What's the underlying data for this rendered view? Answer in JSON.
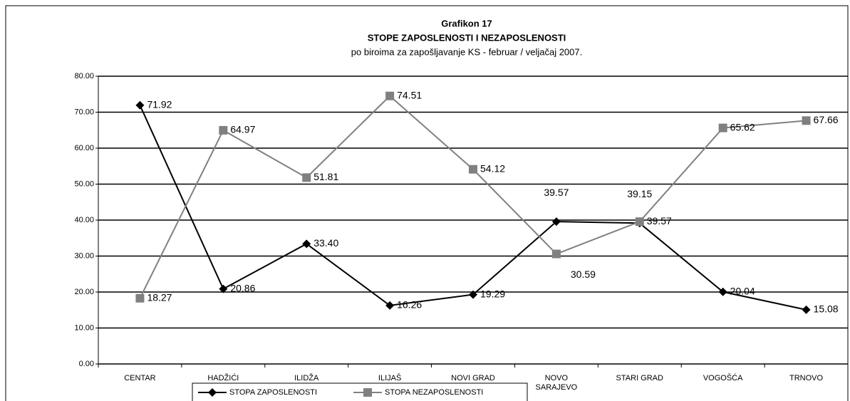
{
  "chart_data": {
    "type": "line",
    "title": "Grafikon 17",
    "subtitle_bold": "STOPE ZAPOSLENOSTI I NEZAPOSLENOSTI",
    "subtitle": "po biroima za zapošljavanje KS - februar / veljačaj 2007.",
    "categories": [
      "CENTAR",
      "HADŽIĆI",
      "ILIDŽA",
      "ILIJAŠ",
      "NOVI GRAD",
      "NOVO SARAJEVO",
      "STARI GRAD",
      "VOGOŠĆA",
      "TRNOVO"
    ],
    "series": [
      {
        "name": "STOPA ZAPOSLENOSTI",
        "color": "#000000",
        "marker": "diamond",
        "values": [
          71.92,
          20.86,
          33.4,
          16.26,
          19.29,
          39.57,
          39.15,
          20.04,
          15.08
        ],
        "value_labels": [
          "71.92",
          "20.86",
          "33.40",
          "16.26",
          "19.29",
          "39.57",
          "39.15",
          "20.04",
          "15.08"
        ]
      },
      {
        "name": "STOPA NEZAPOSLENOSTI",
        "color": "#808080",
        "marker": "square",
        "values": [
          18.27,
          64.97,
          51.81,
          74.51,
          54.12,
          30.59,
          39.57,
          65.62,
          67.66
        ],
        "value_labels": [
          "18.27",
          "64.97",
          "51.81",
          "74.51",
          "54.12",
          "30.59",
          "39.57",
          "65.62",
          "67.66"
        ]
      }
    ],
    "ylim": [
      0,
      80
    ],
    "yticks": [
      {
        "value": 0,
        "label": "0.00"
      },
      {
        "value": 10,
        "label": "10.00"
      },
      {
        "value": 20,
        "label": "20.00"
      },
      {
        "value": 30,
        "label": "30.00"
      },
      {
        "value": 40,
        "label": "40.00"
      },
      {
        "value": 50,
        "label": "50.00"
      },
      {
        "value": 60,
        "label": "60.00"
      },
      {
        "value": 70,
        "label": "70.00"
      },
      {
        "value": 80,
        "label": "80.00"
      }
    ],
    "grid": true,
    "legend": "bottom"
  }
}
